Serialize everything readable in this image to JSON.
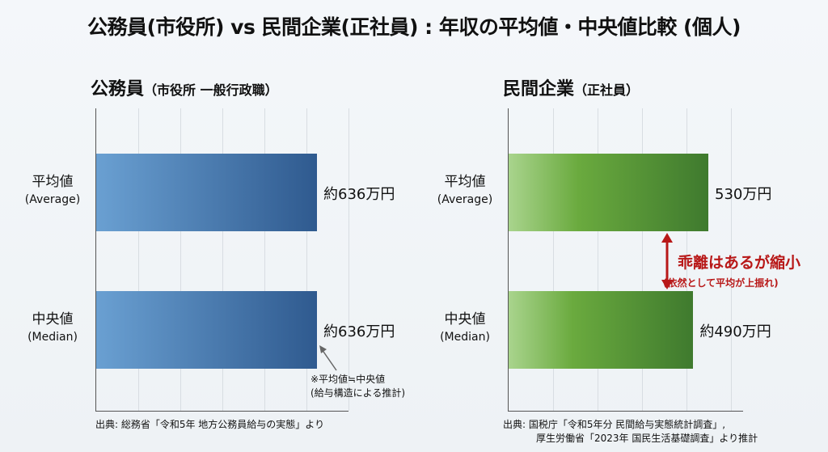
{
  "title": "公務員(市役所) vs 民間企業(正社員) : 年収の平均値・中央値比較 (個人)",
  "chart_data": [
    {
      "type": "bar",
      "orientation": "horizontal",
      "title": "公務員",
      "subtitle": "（市役所 一般行政職）",
      "categories": [
        {
          "ja": "平均値",
          "en": "(Average)"
        },
        {
          "ja": "中央値",
          "en": "(Median)"
        }
      ],
      "values": [
        636,
        636
      ],
      "labels": [
        "約636万円",
        "約636万円"
      ],
      "unit": "万円",
      "color": "#2f5a8f",
      "note": [
        "※平均値≒中央値",
        "(給与構造による推計)"
      ],
      "source": [
        "出典: 総務省「令和5年 地方公務員給与の実態」より"
      ]
    },
    {
      "type": "bar",
      "orientation": "horizontal",
      "title": "民間企業",
      "subtitle": "（正社員）",
      "categories": [
        {
          "ja": "平均値",
          "en": "(Average)"
        },
        {
          "ja": "中央値",
          "en": "(Median)"
        }
      ],
      "values": [
        530,
        490
      ],
      "labels": [
        "530万円",
        "約490万円"
      ],
      "unit": "万円",
      "color": "#3f7a2e",
      "annotation": [
        "乖離はあるが縮小",
        "(依然として平均が上振れ)"
      ],
      "annotation_color": "#b81818",
      "source": [
        "出典: 国税庁「令和5年分 民間給与実態統計調査」,",
        "厚生労働省「2023年 国民生活基礎調査」より推計"
      ]
    }
  ]
}
